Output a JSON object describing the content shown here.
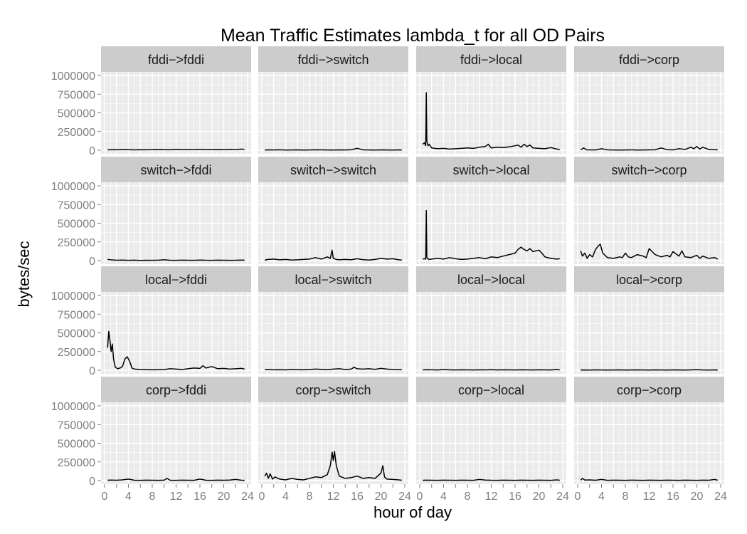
{
  "chart_data": {
    "type": "line",
    "title": "Mean Traffic Estimates lambda_t for all OD Pairs",
    "xlabel": "hour of day",
    "ylabel": "bytes/sec",
    "xlim": [
      0,
      24
    ],
    "ylim": [
      0,
      1000000
    ],
    "x_ticks": [
      0,
      2,
      4,
      6,
      8,
      10,
      12,
      14,
      16,
      18,
      20,
      22,
      24
    ],
    "x_tick_labels": [
      "0",
      "",
      "4",
      "",
      "8",
      "",
      "12",
      "",
      "16",
      "",
      "20",
      "",
      "24"
    ],
    "y_ticks": [
      0,
      250000,
      500000,
      750000,
      1000000
    ],
    "y_tick_labels": [
      "0",
      "250000",
      "500000",
      "750000",
      "1000000"
    ],
    "grid": true,
    "colors": {
      "panel_bg": "#ebebeb",
      "strip_bg": "#cccccc",
      "grid": "#ffffff",
      "line": "#000000"
    },
    "panels": [
      {
        "label": "fddi->fddi",
        "x": [
          0.5,
          1,
          2,
          3,
          4,
          5,
          6,
          7,
          8,
          9,
          10,
          11,
          12,
          13,
          14,
          15,
          16,
          17,
          18,
          19,
          20,
          21,
          22,
          23,
          23.5
        ],
        "y": [
          5000,
          8000,
          6000,
          9000,
          7000,
          5000,
          8000,
          6000,
          7000,
          9000,
          8000,
          6000,
          10000,
          8000,
          7000,
          9000,
          12000,
          8000,
          7000,
          9000,
          8000,
          10000,
          9000,
          15000,
          8000
        ]
      },
      {
        "label": "fddi->switch",
        "x": [
          0.5,
          1,
          2,
          3,
          4,
          5,
          6,
          7,
          8,
          9,
          10,
          11,
          12,
          13,
          14,
          15,
          16,
          17,
          18,
          19,
          20,
          21,
          22,
          23,
          23.5
        ],
        "y": [
          3000,
          5000,
          4000,
          6000,
          3000,
          4000,
          5000,
          3000,
          4000,
          6000,
          5000,
          4000,
          3000,
          5000,
          4000,
          6000,
          25000,
          5000,
          4000,
          3000,
          5000,
          4000,
          3000,
          5000,
          4000
        ]
      },
      {
        "label": "fddi->local",
        "x": [
          0.5,
          0.8,
          1.0,
          1.1,
          1.2,
          1.4,
          1.6,
          2,
          3,
          4,
          5,
          6,
          7,
          8,
          9,
          10,
          11,
          11.5,
          12,
          13,
          14,
          15,
          16,
          16.5,
          17,
          17.5,
          18,
          18.5,
          19,
          20,
          21,
          22,
          23,
          23.5
        ],
        "y": [
          80000,
          100000,
          60000,
          770000,
          120000,
          60000,
          80000,
          30000,
          20000,
          25000,
          15000,
          20000,
          25000,
          30000,
          25000,
          40000,
          50000,
          80000,
          30000,
          40000,
          35000,
          45000,
          60000,
          70000,
          40000,
          80000,
          50000,
          70000,
          30000,
          25000,
          20000,
          35000,
          15000,
          10000
        ]
      },
      {
        "label": "fddi->corp",
        "x": [
          0.5,
          1,
          1.5,
          2,
          3,
          4,
          5,
          6,
          7,
          8,
          9,
          10,
          11,
          12,
          13,
          14,
          15,
          16,
          17,
          18,
          19,
          19.5,
          20,
          20.5,
          21,
          22,
          23,
          23.5
        ],
        "y": [
          5000,
          30000,
          5000,
          5000,
          4000,
          20000,
          5000,
          4000,
          3000,
          4000,
          5000,
          3000,
          4000,
          5000,
          6000,
          30000,
          8000,
          5000,
          20000,
          10000,
          40000,
          20000,
          50000,
          15000,
          40000,
          10000,
          8000,
          5000
        ]
      },
      {
        "label": "switch->fddi",
        "x": [
          0.5,
          1,
          2,
          3,
          4,
          5,
          6,
          7,
          8,
          9,
          10,
          11,
          12,
          13,
          14,
          15,
          16,
          17,
          18,
          19,
          20,
          21,
          22,
          23,
          23.5
        ],
        "y": [
          15000,
          10000,
          5000,
          8000,
          4000,
          6000,
          3000,
          5000,
          4000,
          6000,
          10000,
          5000,
          4000,
          6000,
          5000,
          4000,
          8000,
          5000,
          4000,
          6000,
          5000,
          4000,
          5000,
          8000,
          5000
        ]
      },
      {
        "label": "switch->switch",
        "x": [
          0.5,
          1,
          2,
          3,
          4,
          5,
          6,
          7,
          8,
          8.5,
          9,
          10,
          11,
          11.5,
          11.8,
          12,
          12.5,
          13,
          14,
          15,
          16,
          17,
          18,
          19,
          20,
          21,
          22,
          23,
          23.5
        ],
        "y": [
          5000,
          15000,
          20000,
          10000,
          15000,
          8000,
          10000,
          15000,
          20000,
          30000,
          40000,
          20000,
          50000,
          30000,
          140000,
          30000,
          15000,
          10000,
          15000,
          10000,
          25000,
          12000,
          8000,
          15000,
          30000,
          20000,
          25000,
          10000,
          8000
        ]
      },
      {
        "label": "switch->local",
        "x": [
          0.5,
          0.8,
          1.0,
          1.1,
          1.2,
          1.5,
          2,
          3,
          4,
          5,
          6,
          7,
          8,
          9,
          10,
          11,
          12,
          13,
          14,
          15,
          16,
          16.5,
          17,
          17.5,
          18,
          18.5,
          19,
          20,
          20.5,
          21,
          22,
          23,
          23.5
        ],
        "y": [
          20000,
          25000,
          20000,
          670000,
          40000,
          15000,
          20000,
          30000,
          20000,
          40000,
          25000,
          15000,
          20000,
          30000,
          40000,
          25000,
          50000,
          40000,
          60000,
          80000,
          100000,
          150000,
          180000,
          150000,
          130000,
          160000,
          120000,
          140000,
          100000,
          50000,
          30000,
          20000,
          25000
        ]
      },
      {
        "label": "switch->corp",
        "x": [
          0.5,
          0.8,
          1.2,
          1.6,
          2,
          2.5,
          3,
          3.5,
          3.8,
          4.2,
          5,
          6,
          7,
          7.5,
          8,
          8.5,
          9,
          10,
          11,
          11.5,
          12,
          13,
          14,
          15,
          15.5,
          16,
          17,
          17.5,
          18,
          19,
          20,
          20.5,
          21,
          22,
          23,
          23.5
        ],
        "y": [
          130000,
          60000,
          100000,
          30000,
          80000,
          50000,
          150000,
          200000,
          220000,
          100000,
          40000,
          30000,
          50000,
          40000,
          100000,
          50000,
          40000,
          80000,
          60000,
          40000,
          160000,
          80000,
          50000,
          70000,
          50000,
          120000,
          60000,
          130000,
          50000,
          40000,
          70000,
          30000,
          60000,
          30000,
          40000,
          20000
        ]
      },
      {
        "label": "local->fddi",
        "x": [
          0.5,
          0.7,
          0.9,
          1.1,
          1.3,
          1.5,
          1.8,
          2.2,
          2.6,
          3,
          3.4,
          3.8,
          4.2,
          4.6,
          5,
          6,
          7,
          8,
          9,
          10,
          11,
          12,
          13,
          14,
          15,
          16,
          16.5,
          17,
          18,
          19,
          20,
          21,
          22,
          23,
          23.5
        ],
        "y": [
          300000,
          520000,
          400000,
          250000,
          350000,
          150000,
          40000,
          20000,
          30000,
          50000,
          150000,
          180000,
          120000,
          30000,
          15000,
          10000,
          8000,
          6000,
          8000,
          10000,
          20000,
          15000,
          10000,
          20000,
          30000,
          25000,
          60000,
          30000,
          50000,
          20000,
          25000,
          15000,
          20000,
          25000,
          15000
        ]
      },
      {
        "label": "local->switch",
        "x": [
          0.5,
          1,
          2,
          3,
          4,
          5,
          6,
          7,
          8,
          9,
          10,
          11,
          12,
          13,
          14,
          15,
          15.5,
          16,
          17,
          18,
          19,
          20,
          21,
          22,
          23,
          23.5
        ],
        "y": [
          8000,
          10000,
          6000,
          8000,
          5000,
          10000,
          8000,
          6000,
          10000,
          15000,
          12000,
          8000,
          15000,
          20000,
          10000,
          15000,
          40000,
          20000,
          15000,
          20000,
          12000,
          25000,
          15000,
          10000,
          8000,
          6000
        ]
      },
      {
        "label": "local->local",
        "x": [
          0.5,
          1,
          2,
          3,
          4,
          5,
          6,
          7,
          8,
          9,
          10,
          11,
          12,
          13,
          14,
          15,
          16,
          17,
          18,
          19,
          20,
          21,
          22,
          23,
          23.5
        ],
        "y": [
          5000,
          8000,
          6000,
          4000,
          10000,
          5000,
          4000,
          6000,
          5000,
          4000,
          6000,
          5000,
          8000,
          4000,
          6000,
          5000,
          4000,
          6000,
          5000,
          4000,
          6000,
          5000,
          4000,
          10000,
          5000
        ]
      },
      {
        "label": "local->corp",
        "x": [
          0.5,
          1,
          2,
          3,
          4,
          5,
          6,
          7,
          8,
          9,
          10,
          11,
          12,
          13,
          14,
          15,
          16,
          17,
          18,
          19,
          20,
          21,
          22,
          23,
          23.5
        ],
        "y": [
          3000,
          4000,
          3000,
          5000,
          4000,
          3000,
          4000,
          5000,
          3000,
          4000,
          5000,
          4000,
          3000,
          5000,
          4000,
          3000,
          5000,
          4000,
          3000,
          5000,
          8000,
          4000,
          3000,
          5000,
          3000
        ]
      },
      {
        "label": "corp->fddi",
        "x": [
          0.5,
          1,
          2,
          3,
          4,
          5,
          6,
          7,
          8,
          9,
          10,
          10.5,
          11,
          12,
          13,
          14,
          15,
          16,
          17,
          18,
          19,
          20,
          21,
          22,
          23,
          23.5
        ],
        "y": [
          5000,
          8000,
          5000,
          10000,
          20000,
          5000,
          4000,
          6000,
          5000,
          4000,
          6000,
          30000,
          5000,
          4000,
          6000,
          5000,
          4000,
          20000,
          5000,
          4000,
          6000,
          5000,
          8000,
          15000,
          5000,
          4000
        ]
      },
      {
        "label": "corp->switch",
        "x": [
          0.5,
          0.8,
          1.1,
          1.4,
          1.8,
          2.2,
          3,
          4,
          5,
          6,
          7,
          8,
          9,
          10,
          11,
          11.5,
          11.8,
          12,
          12.2,
          12.5,
          13,
          14,
          15,
          16,
          17,
          18,
          19,
          20,
          20.3,
          20.6,
          21,
          22,
          23,
          23.5
        ],
        "y": [
          60000,
          100000,
          30000,
          90000,
          20000,
          50000,
          20000,
          10000,
          30000,
          15000,
          10000,
          30000,
          50000,
          40000,
          80000,
          200000,
          380000,
          270000,
          390000,
          200000,
          60000,
          30000,
          40000,
          60000,
          30000,
          40000,
          30000,
          100000,
          200000,
          50000,
          20000,
          15000,
          10000,
          5000
        ]
      },
      {
        "label": "corp->local",
        "x": [
          0.5,
          1,
          2,
          3,
          4,
          5,
          6,
          7,
          8,
          9,
          10,
          11,
          12,
          13,
          14,
          15,
          16,
          17,
          18,
          19,
          20,
          21,
          22,
          23,
          23.5
        ],
        "y": [
          4000,
          6000,
          5000,
          4000,
          6000,
          5000,
          4000,
          6000,
          5000,
          4000,
          15000,
          8000,
          5000,
          4000,
          6000,
          5000,
          4000,
          6000,
          5000,
          4000,
          6000,
          5000,
          4000,
          10000,
          5000
        ]
      },
      {
        "label": "corp->corp",
        "x": [
          0.5,
          0.8,
          1.2,
          2,
          3,
          4,
          5,
          6,
          7,
          8,
          9,
          10,
          11,
          12,
          13,
          14,
          15,
          16,
          17,
          18,
          19,
          20,
          21,
          22,
          23,
          23.5
        ],
        "y": [
          5000,
          30000,
          8000,
          10000,
          5000,
          15000,
          4000,
          6000,
          5000,
          4000,
          6000,
          5000,
          4000,
          6000,
          5000,
          4000,
          6000,
          5000,
          4000,
          6000,
          5000,
          4000,
          6000,
          5000,
          15000,
          5000
        ]
      }
    ]
  }
}
